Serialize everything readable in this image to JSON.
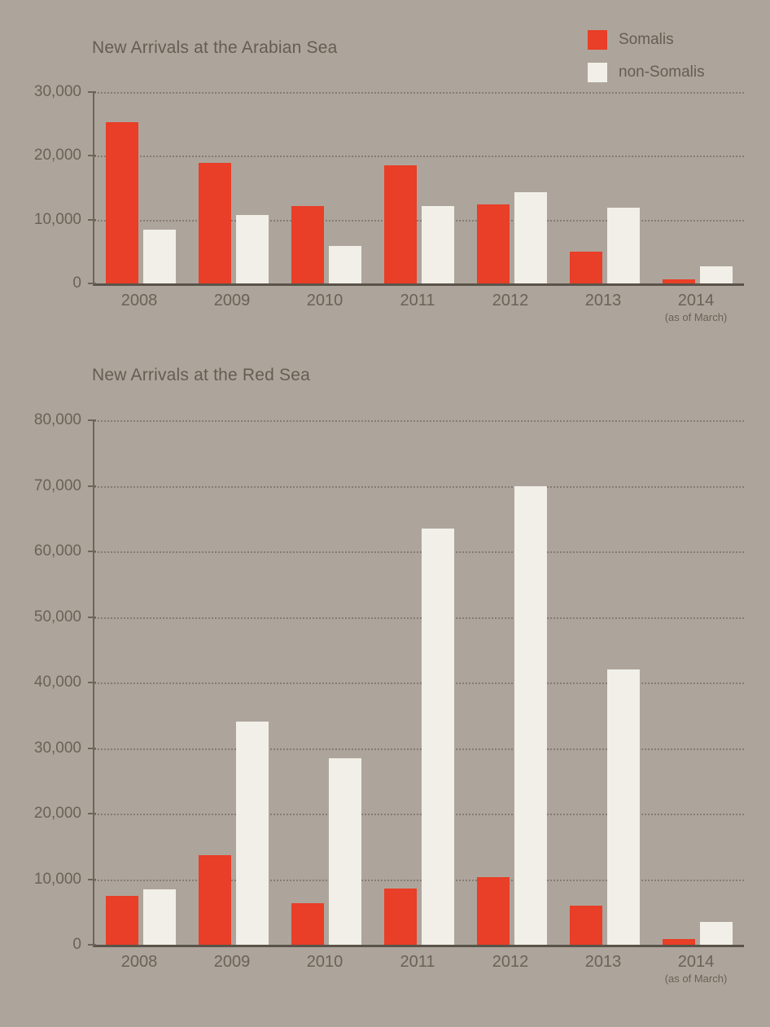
{
  "page": {
    "background_color": "#ada59b",
    "text_color": "#665d52",
    "axis_label_color": "#6b6257",
    "gridline_color": "#6e6459",
    "axis_color": "#5a534a"
  },
  "legend": {
    "position": "top-right",
    "items": [
      {
        "label": "Somalis",
        "color": "#e93e27"
      },
      {
        "label": "non-Somalis",
        "color": "#f1efe8"
      }
    ]
  },
  "chart_data": [
    {
      "type": "bar",
      "title": "New Arrivals at the Arabian Sea",
      "categories": [
        "2008",
        "2009",
        "2010",
        "2011",
        "2012",
        "2013",
        "2014"
      ],
      "category_note": {
        "index": 6,
        "text": "(as of March)"
      },
      "series": [
        {
          "name": "Somalis",
          "color": "#e93e27",
          "values": [
            25300,
            18900,
            12100,
            18500,
            12400,
            5000,
            700
          ]
        },
        {
          "name": "non-Somalis",
          "color": "#f1efe8",
          "values": [
            8400,
            10700,
            5900,
            12100,
            14300,
            11900,
            2700
          ]
        }
      ],
      "ylim": [
        0,
        30000
      ],
      "ytick_step": 10000,
      "ytick_labels": [
        "0",
        "10,000",
        "20,000",
        "30,000"
      ],
      "grid": "horizontal-dotted",
      "legend_position": "top-right"
    },
    {
      "type": "bar",
      "title": "New Arrivals at the Red Sea",
      "categories": [
        "2008",
        "2009",
        "2010",
        "2011",
        "2012",
        "2013",
        "2014"
      ],
      "category_note": {
        "index": 6,
        "text": "(as of March)"
      },
      "series": [
        {
          "name": "Somalis",
          "color": "#e93e27",
          "values": [
            7400,
            13700,
            6300,
            8600,
            10300,
            6000,
            900
          ]
        },
        {
          "name": "non-Somalis",
          "color": "#f1efe8",
          "values": [
            8400,
            34000,
            28500,
            63500,
            70000,
            42000,
            3500
          ]
        }
      ],
      "ylim": [
        0,
        80000
      ],
      "ytick_step": 10000,
      "ytick_labels": [
        "0",
        "10,000",
        "20,000",
        "30,000",
        "40,000",
        "50,000",
        "60,000",
        "70,000",
        "80,000"
      ],
      "grid": "horizontal-dotted",
      "legend_position": "none"
    }
  ]
}
